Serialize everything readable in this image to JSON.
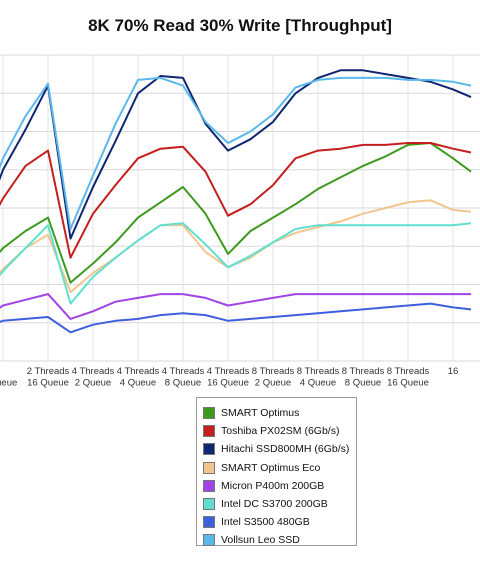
{
  "chart_data": {
    "type": "line",
    "title": "8K 70% Read 30% Write [Throughput]",
    "xlabel": "",
    "ylabel": "",
    "ylim": [
      0,
      8
    ],
    "grid": true,
    "legend_position": "bottom",
    "categories": [
      [
        "",
        "Queue"
      ],
      [
        "2 Threads",
        "16 Queue"
      ],
      [
        "4 Threads",
        "2 Queue"
      ],
      [
        "4 Threads",
        "4 Queue"
      ],
      [
        "4 Threads",
        "8 Queue"
      ],
      [
        "4 Threads",
        "16 Queue"
      ],
      [
        "8 Threads",
        "2 Queue"
      ],
      [
        "8 Threads",
        "4 Queue"
      ],
      [
        "8 Threads",
        "8 Queue"
      ],
      [
        "8 Threads",
        "16 Queue"
      ],
      [
        "16",
        ""
      ]
    ],
    "x": [
      -0.25,
      0,
      0.5,
      1,
      1.5,
      2,
      2.5,
      3,
      3.5,
      4,
      4.5,
      5,
      5.5,
      6,
      6.5,
      7,
      7.5,
      8,
      8.5,
      9,
      9.5,
      10,
      10.4
    ],
    "series": [
      {
        "name": "SMART Optimus",
        "color": "#3d9a1f",
        "values": [
          2.6,
          2.95,
          3.4,
          3.75,
          2.05,
          2.55,
          3.1,
          3.75,
          4.15,
          4.55,
          3.85,
          2.8,
          3.4,
          3.75,
          4.1,
          4.5,
          4.8,
          5.1,
          5.35,
          5.65,
          5.7,
          5.3,
          4.95
        ]
      },
      {
        "name": "Toshiba PX02SM (6Gb/s)",
        "color": "#c41e1e",
        "values": [
          3.7,
          4.25,
          5.1,
          5.5,
          2.7,
          3.85,
          4.6,
          5.3,
          5.55,
          5.6,
          4.95,
          3.8,
          4.1,
          4.6,
          5.3,
          5.5,
          5.55,
          5.65,
          5.65,
          5.7,
          5.7,
          5.55,
          5.45
        ]
      },
      {
        "name": "Hitachi SSD800MH (6Gb/s)",
        "color": "#0f2670",
        "values": [
          4.2,
          5.0,
          6.05,
          7.2,
          3.2,
          4.55,
          5.75,
          7.0,
          7.45,
          7.4,
          6.2,
          5.5,
          5.8,
          6.25,
          7.0,
          7.4,
          7.6,
          7.6,
          7.5,
          7.4,
          7.3,
          7.1,
          6.9
        ]
      },
      {
        "name": "SMART Optimus Eco",
        "color": "#f2c48f",
        "values": [
          2.1,
          2.4,
          2.95,
          3.3,
          1.8,
          2.3,
          2.7,
          3.15,
          3.55,
          3.55,
          2.85,
          2.45,
          2.7,
          3.1,
          3.35,
          3.5,
          3.65,
          3.85,
          4.0,
          4.15,
          4.2,
          3.95,
          3.9
        ]
      },
      {
        "name": "Micron P400m 200GB",
        "color": "#a044e6",
        "values": [
          1.25,
          1.45,
          1.6,
          1.75,
          1.1,
          1.3,
          1.55,
          1.65,
          1.75,
          1.75,
          1.65,
          1.45,
          1.55,
          1.65,
          1.75,
          1.75,
          1.75,
          1.75,
          1.75,
          1.75,
          1.75,
          1.75,
          1.75
        ]
      },
      {
        "name": "Intel DC S3700 200GB",
        "color": "#5fe0cf",
        "values": [
          2.0,
          2.35,
          2.95,
          3.55,
          1.5,
          2.2,
          2.7,
          3.15,
          3.55,
          3.6,
          3.05,
          2.45,
          2.75,
          3.1,
          3.45,
          3.55,
          3.55,
          3.55,
          3.55,
          3.55,
          3.55,
          3.55,
          3.6
        ]
      },
      {
        "name": "Intel S3500 480GB",
        "color": "#3e60de",
        "values": [
          0.95,
          1.05,
          1.1,
          1.15,
          0.75,
          0.95,
          1.05,
          1.1,
          1.2,
          1.25,
          1.2,
          1.05,
          1.1,
          1.15,
          1.2,
          1.25,
          1.3,
          1.35,
          1.4,
          1.45,
          1.5,
          1.4,
          1.35
        ]
      },
      {
        "name": "Vollsun Leo SSD",
        "color": "#5bb8ec",
        "values": [
          4.5,
          5.3,
          6.4,
          7.25,
          3.45,
          4.85,
          6.2,
          7.35,
          7.4,
          7.2,
          6.25,
          5.7,
          6.0,
          6.45,
          7.15,
          7.35,
          7.4,
          7.4,
          7.4,
          7.35,
          7.35,
          7.3,
          7.2
        ]
      }
    ]
  }
}
